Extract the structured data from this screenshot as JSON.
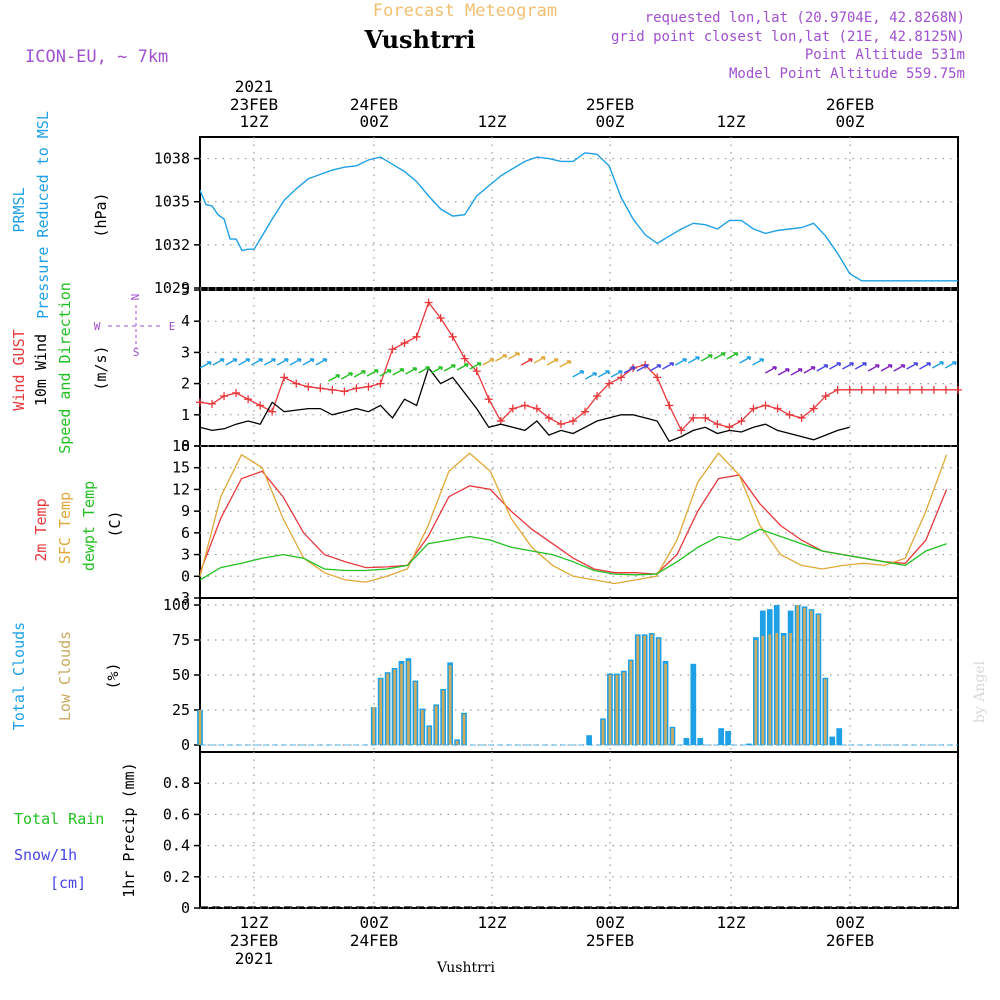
{
  "header": {
    "title": "Forecast Meteogram",
    "location": "Vushtrri",
    "model": "ICON-EU, ~ 7km",
    "requested": "requested lon,lat (20.9704E, 42.8268N)",
    "grid_point": "grid point closest lon,lat (21E, 42.8125N)",
    "point_alt": "Point Altitude 531m",
    "model_alt": "Model Point Altitude 559.75m",
    "footer_name": "Vushtrri",
    "watermark": "by Angel"
  },
  "time_axis": {
    "top_labels": [
      {
        "line1": "2021",
        "line2": "23FEB",
        "line3": "12Z"
      },
      {
        "line1": "",
        "line2": "24FEB",
        "line3": "00Z"
      },
      {
        "line1": "",
        "line2": "",
        "line3": "12Z"
      },
      {
        "line1": "",
        "line2": "25FEB",
        "line3": "00Z"
      },
      {
        "line1": "",
        "line2": "",
        "line3": "12Z"
      },
      {
        "line1": "",
        "line2": "26FEB",
        "line3": "00Z"
      }
    ],
    "bottom_labels": [
      {
        "line1": "12Z",
        "line2": "23FEB",
        "line3": "2021"
      },
      {
        "line1": "00Z",
        "line2": "24FEB",
        "line3": ""
      },
      {
        "line1": "12Z",
        "line2": "",
        "line3": ""
      },
      {
        "line1": "00Z",
        "line2": "25FEB",
        "line3": ""
      },
      {
        "line1": "12Z",
        "line2": "",
        "line3": ""
      },
      {
        "line1": "00Z",
        "line2": "26FEB",
        "line3": ""
      }
    ]
  },
  "panel_labels": {
    "pressure": {
      "l1": "PRMSL",
      "l2": "Pressure Reduced to MSL",
      "unit": "(hPa)"
    },
    "wind": {
      "l1": "Wind GUST",
      "l2": "10m Wind",
      "l3": "Speed and Direction",
      "unit": "(m/s)",
      "rose_n": "N",
      "rose_s": "S",
      "rose_w": "W",
      "rose_e": "E"
    },
    "temp": {
      "l1": "2m Temp",
      "l2": "SFC Temp",
      "l3": "dewpt Temp",
      "unit": "(C)"
    },
    "clouds": {
      "l1": "Total Clouds",
      "l2": "Low Clouds",
      "unit": "(%)"
    },
    "precip": {
      "l1": "Total Rain",
      "l2": "Snow/1h",
      "l3": "[cm]",
      "unit": "1hr Precip (mm)"
    }
  },
  "colors": {
    "pressure": "#1ea0e6",
    "gust": "#e8383c",
    "wind10": "#000000",
    "t2m": "#e8383c",
    "tsfc": "#e0a838",
    "dewpt": "#22c022",
    "total_cloud": "#1ea0e6",
    "low_cloud": "#c8aa60",
    "rain": "#22c022",
    "snow": "#4646e6",
    "header_title": "#f0c070",
    "info": "#a050d0"
  },
  "chart_data": [
    {
      "type": "line",
      "name": "pressure",
      "x_unit": "hours since 2021-02-23 06Z",
      "ylim": [
        1029,
        1039.5
      ],
      "yticks": [
        1029,
        1032,
        1035,
        1038
      ],
      "series": [
        {
          "name": "PRMSL",
          "x": [
            0,
            1,
            2,
            3,
            4,
            5,
            6,
            7,
            8,
            9,
            10,
            12,
            14,
            16,
            18,
            20,
            22,
            24,
            26,
            28,
            30,
            32,
            34,
            36,
            38,
            40,
            42,
            44,
            46,
            48,
            50,
            52,
            54,
            56,
            58,
            60,
            62,
            64,
            66,
            68,
            70,
            72,
            74,
            76,
            78,
            80,
            82,
            84,
            86,
            88,
            90,
            92,
            94,
            96,
            98,
            100,
            102,
            104,
            106,
            108,
            110,
            112,
            114,
            116,
            118,
            120,
            122,
            124,
            126
          ],
          "y": [
            1035.8,
            1034.8,
            1034.7,
            1034.1,
            1033.8,
            1032.4,
            1032.4,
            1031.6,
            1031.7,
            1031.7,
            1032.4,
            1033.8,
            1035.1,
            1035.9,
            1036.6,
            1036.9,
            1037.2,
            1037.4,
            1037.5,
            1037.9,
            1038.1,
            1037.6,
            1037.1,
            1036.4,
            1035.4,
            1034.5,
            1034.0,
            1034.1,
            1035.4,
            1036.1,
            1036.8,
            1037.3,
            1037.8,
            1038.1,
            1038.0,
            1037.8,
            1037.8,
            1038.4,
            1038.3,
            1037.5,
            1035.3,
            1033.8,
            1032.7,
            1032.1,
            1032.6,
            1033.1,
            1033.5,
            1033.4,
            1033.1,
            1033.7,
            1033.7,
            1033.1,
            1032.8,
            1033.0,
            1033.1,
            1033.2,
            1033.5,
            1032.6,
            1031.4,
            1030.0,
            1029.5,
            1029.5,
            1029.5,
            1029.5,
            1029.5,
            1029.5,
            1029.5,
            1029.5,
            1029.5
          ],
          "visible_until": 108
        }
      ]
    },
    {
      "type": "line",
      "name": "wind",
      "x_unit": "hours since 2021-02-23 06Z",
      "ylim": [
        0,
        5
      ],
      "yticks": [
        0,
        1,
        2,
        3,
        4,
        5
      ],
      "series": [
        {
          "name": "Wind GUST",
          "x": [
            0,
            2,
            4,
            6,
            8,
            10,
            12,
            14,
            16,
            18,
            20,
            22,
            24,
            26,
            28,
            30,
            32,
            34,
            36,
            38,
            40,
            42,
            44,
            46,
            48,
            50,
            52,
            54,
            56,
            58,
            60,
            62,
            64,
            66,
            68,
            70,
            72,
            74,
            76,
            78,
            80,
            82,
            84,
            86,
            88,
            90,
            92,
            94,
            96,
            98,
            100,
            102,
            104,
            106,
            108,
            110,
            112,
            114,
            116,
            118,
            120,
            122,
            124,
            126
          ],
          "y": [
            1.4,
            1.35,
            1.6,
            1.7,
            1.5,
            1.3,
            1.1,
            2.2,
            2.0,
            1.9,
            1.85,
            1.8,
            1.75,
            1.85,
            1.9,
            2.0,
            3.1,
            3.3,
            3.5,
            4.6,
            4.1,
            3.5,
            2.8,
            2.4,
            1.5,
            0.8,
            1.2,
            1.3,
            1.2,
            0.9,
            0.7,
            0.8,
            1.1,
            1.6,
            2.0,
            2.2,
            2.5,
            2.6,
            2.2,
            1.3,
            0.5,
            0.9,
            0.9,
            0.7,
            0.6,
            0.8,
            1.2,
            1.3,
            1.2,
            1.0,
            0.9,
            1.2,
            1.6,
            1.8,
            1.8,
            1.8,
            1.8,
            1.8,
            1.8,
            1.8,
            1.8,
            1.8,
            1.8,
            1.8
          ]
        },
        {
          "name": "10m Wind",
          "x": [
            0,
            2,
            4,
            6,
            8,
            10,
            12,
            14,
            16,
            18,
            20,
            22,
            24,
            26,
            28,
            30,
            32,
            34,
            36,
            38,
            40,
            42,
            44,
            46,
            48,
            50,
            52,
            54,
            56,
            58,
            60,
            62,
            64,
            66,
            68,
            70,
            72,
            74,
            76,
            78,
            80,
            82,
            84,
            86,
            88,
            90,
            92,
            94,
            96,
            98,
            100,
            102,
            104,
            106,
            108
          ],
          "y": [
            0.6,
            0.5,
            0.55,
            0.7,
            0.8,
            0.7,
            1.4,
            1.1,
            1.15,
            1.2,
            1.2,
            1.0,
            1.1,
            1.2,
            1.1,
            1.3,
            0.9,
            1.5,
            1.3,
            2.5,
            2.0,
            2.2,
            1.7,
            1.2,
            0.6,
            0.7,
            0.6,
            0.5,
            0.8,
            0.35,
            0.5,
            0.4,
            0.6,
            0.8,
            0.9,
            1.0,
            1.0,
            0.9,
            0.8,
            0.15,
            0.3,
            0.5,
            0.6,
            0.4,
            0.5,
            0.45,
            0.6,
            0.7,
            0.5,
            0.4,
            0.3,
            0.2,
            0.35,
            0.5,
            0.6
          ]
        }
      ]
    },
    {
      "type": "line",
      "name": "temperature",
      "x_unit": "hours since 2021-02-23 06Z",
      "ylim": [
        -3,
        18
      ],
      "yticks": [
        -3,
        0,
        3,
        6,
        9,
        12,
        15,
        18
      ],
      "series": [
        {
          "name": "2m Temp",
          "x": [
            0,
            3,
            6,
            9,
            12,
            15,
            18,
            21,
            24,
            27,
            30,
            33,
            36,
            39,
            42,
            45,
            48,
            51,
            54,
            57,
            60,
            63,
            66,
            69,
            72,
            75,
            78,
            81,
            84,
            87,
            90,
            93,
            96,
            99,
            102,
            105,
            108
          ],
          "y": [
            0.5,
            8,
            13.5,
            14.5,
            11,
            6,
            3,
            2,
            1.2,
            1.3,
            1.5,
            5.5,
            11,
            12.5,
            12,
            9,
            6.5,
            4.5,
            2.5,
            1,
            0.5,
            0.5,
            0.3,
            3,
            9,
            13.5,
            14,
            10,
            7,
            5,
            3.5,
            3,
            2.5,
            2,
            1.8,
            5,
            12
          ]
        },
        {
          "name": "SFC Temp",
          "x": [
            0,
            3,
            6,
            9,
            12,
            15,
            18,
            21,
            24,
            27,
            30,
            33,
            36,
            39,
            42,
            45,
            48,
            51,
            54,
            57,
            60,
            63,
            66,
            69,
            72,
            75,
            78,
            81,
            84,
            87,
            90,
            93,
            96,
            99,
            102,
            105,
            108
          ],
          "y": [
            0,
            11,
            16.8,
            15,
            8,
            2.5,
            0.5,
            -0.5,
            -0.8,
            0,
            1,
            7,
            14.5,
            17,
            14.5,
            8,
            4,
            1.5,
            0,
            -0.5,
            -1,
            -0.5,
            0,
            5,
            13,
            17,
            14,
            7,
            3,
            1.5,
            1,
            1.5,
            1.8,
            1.5,
            2.5,
            9,
            16.8
          ]
        },
        {
          "name": "dewpt Temp",
          "x": [
            0,
            3,
            6,
            9,
            12,
            15,
            18,
            21,
            24,
            27,
            30,
            33,
            36,
            39,
            42,
            45,
            48,
            51,
            54,
            57,
            60,
            63,
            66,
            69,
            72,
            75,
            78,
            81,
            84,
            87,
            90,
            93,
            96,
            99,
            102,
            105,
            108
          ],
          "y": [
            -0.5,
            1.2,
            1.8,
            2.5,
            3,
            2.5,
            1,
            0.8,
            0.8,
            1,
            1.5,
            4.5,
            5,
            5.5,
            5,
            4,
            3.5,
            3,
            2,
            0.8,
            0.3,
            0.2,
            0.3,
            2,
            4,
            5.5,
            5,
            6.5,
            5.5,
            4.5,
            3.5,
            3,
            2.5,
            2,
            1.5,
            3.5,
            4.5
          ]
        }
      ]
    },
    {
      "type": "bar",
      "name": "clouds",
      "x_unit": "hours since 2021-02-23 06Z",
      "ylim": [
        -5,
        105
      ],
      "yticks": [
        0,
        25,
        50,
        75,
        100
      ],
      "x": [
        0,
        25,
        26,
        27,
        28,
        29,
        30,
        31,
        32,
        33,
        34,
        35,
        36,
        37,
        38,
        39,
        40,
        56,
        58,
        59,
        60,
        61,
        62,
        63,
        64,
        65,
        66,
        67,
        68,
        69,
        70,
        71,
        72,
        73,
        74,
        75,
        76,
        77,
        78,
        79,
        80,
        81,
        82,
        83,
        84,
        85,
        86,
        87,
        88,
        89,
        90,
        91,
        92,
        93,
        94,
        95,
        96,
        97,
        108
      ],
      "series": [
        {
          "name": "Total Clouds",
          "values": [
            25,
            27,
            48,
            52,
            55,
            60,
            62,
            46,
            26,
            14,
            29,
            40,
            59,
            4,
            23,
            0,
            0,
            7,
            19,
            51,
            51,
            53,
            61,
            79,
            79,
            80,
            77,
            60,
            13,
            0,
            5,
            58,
            5,
            0,
            0,
            12,
            10,
            0,
            0,
            1,
            77,
            96,
            97,
            100,
            80,
            96,
            100,
            99,
            97,
            94,
            48,
            6,
            12,
            0,
            0,
            0,
            0,
            0,
            0
          ]
        },
        {
          "name": "Low Clouds",
          "values": [
            25,
            27,
            47,
            51,
            54,
            58,
            60,
            45,
            25,
            13,
            28,
            39,
            57,
            3,
            22,
            0,
            0,
            0,
            18,
            50,
            50,
            52,
            60,
            78,
            78,
            79,
            76,
            58,
            12,
            0,
            0,
            0,
            0,
            0,
            0,
            0,
            0,
            0,
            0,
            0,
            75,
            78,
            79,
            80,
            78,
            80,
            100,
            98,
            96,
            93,
            47,
            0,
            0,
            0,
            0,
            0,
            0,
            0,
            0
          ]
        }
      ]
    },
    {
      "type": "bar",
      "name": "precipitation",
      "x_unit": "hours since 2021-02-23 06Z",
      "ylim": [
        0,
        1
      ],
      "yticks": [
        0,
        0.2,
        0.4,
        0.6,
        0.8
      ],
      "series": [
        {
          "name": "Total Rain",
          "values": []
        },
        {
          "name": "Snow/1h",
          "values": []
        }
      ]
    }
  ]
}
